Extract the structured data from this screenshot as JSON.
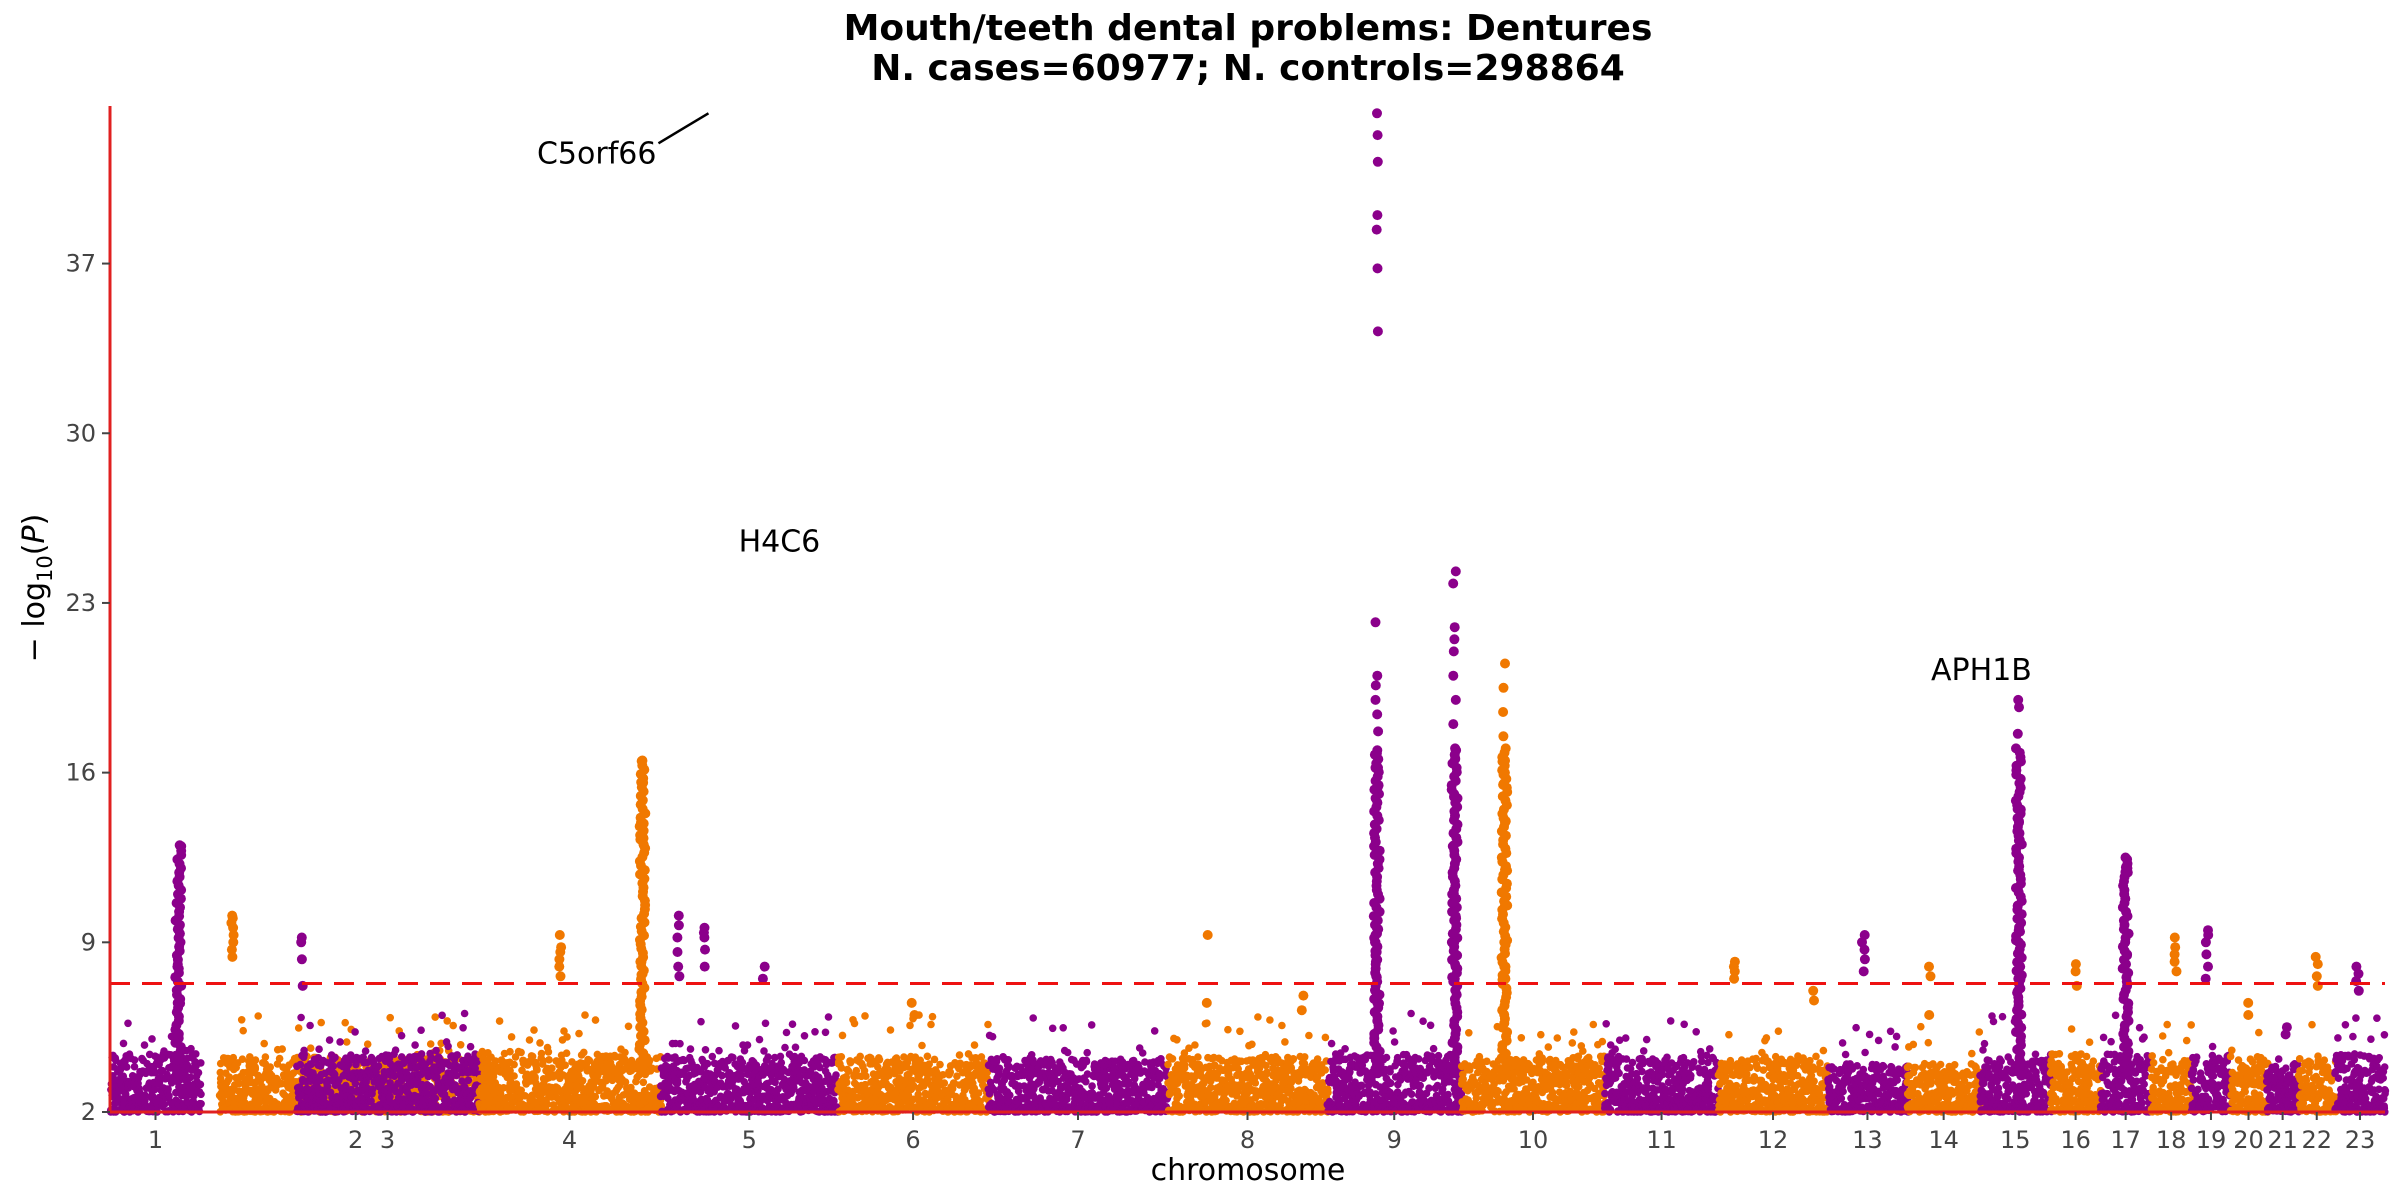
{
  "chart_data": {
    "type": "scatter",
    "subtype": "manhattan",
    "title": "Mouth/teeth dental problems: Dentures",
    "subtitle": "N. cases=60977; N. controls=298864",
    "xlabel": "chromosome",
    "ylabel": "−log10(P)",
    "ylim": [
      2,
      43.5
    ],
    "yticks": [
      2,
      9,
      16,
      23,
      30,
      37
    ],
    "significance_line": 7.3,
    "colors": {
      "odd": "#8b008b",
      "even": "#f07800",
      "axis": "#e02020",
      "threshold": "#ee1111",
      "text": "#000000",
      "tick": "#444444"
    },
    "grid": false,
    "legend": "none",
    "chromosomes": [
      {
        "label": "1",
        "start": 0.0,
        "end": 0.04,
        "base": 3.6,
        "peaks": [
          {
            "pos": 0.75,
            "values": [
              13.0,
              9.6,
              8.0,
              6.5
            ]
          }
        ]
      },
      {
        "label": "2",
        "start": 0.048,
        "end": 0.168,
        "base": 3.5,
        "peaks": [
          {
            "pos": 0.05,
            "values": [
              10.1,
              10.0,
              9.8,
              9.6,
              9.3,
              9.0,
              8.7,
              8.4
            ]
          }
        ]
      },
      {
        "label": "3",
        "start": 0.082,
        "end": 0.162,
        "base": 3.6,
        "peaks": [
          {
            "pos": 0.03,
            "values": [
              9.2,
              9.0,
              8.3,
              7.2
            ]
          }
        ]
      },
      {
        "label": "4",
        "start": 0.162,
        "end": 0.242,
        "base": 3.7,
        "peaks": [
          {
            "pos": 0.45,
            "values": [
              9.3,
              8.8,
              8.6,
              8.3,
              8.0,
              7.6
            ]
          },
          {
            "pos": 0.9,
            "values": [
              16.5,
              15.6,
              13.9,
              13.6,
              13.3,
              13.0,
              8.2,
              7.7
            ]
          }
        ]
      },
      {
        "label": "5",
        "start": 0.242,
        "end": 0.32,
        "base": 3.5,
        "peaks": [
          {
            "pos": 0.1,
            "values": [
              10.1,
              9.7,
              9.2,
              8.6,
              8.0,
              7.6
            ]
          },
          {
            "pos": 0.25,
            "values": [
              9.6,
              9.4,
              9.2,
              8.7,
              8.0
            ]
          },
          {
            "pos": 0.58,
            "values": [
              8.0,
              7.5
            ]
          }
        ]
      },
      {
        "label": "6",
        "start": 0.32,
        "end": 0.386,
        "base": 3.5,
        "peaks": [
          {
            "pos": 0.5,
            "values": [
              6.5,
              6.0
            ]
          }
        ]
      },
      {
        "label": "7",
        "start": 0.386,
        "end": 0.465,
        "base": 3.4,
        "peaks": []
      },
      {
        "label": "8",
        "start": 0.465,
        "end": 0.535,
        "base": 3.5,
        "peaks": [
          {
            "pos": 0.25,
            "values": [
              9.3,
              6.5
            ]
          },
          {
            "pos": 0.85,
            "values": [
              6.8,
              6.2
            ]
          }
        ]
      },
      {
        "label": "9",
        "start": 0.535,
        "end": 0.594,
        "base": 3.6,
        "peaks": [
          {
            "pos": 0.37,
            "values": [
              43.2,
              42.3,
              41.2,
              39.0,
              38.4,
              36.8,
              34.2,
              22.2,
              20.0,
              19.6,
              19.0,
              18.4,
              17.7,
              16.8,
              16.2,
              15.4,
              9.6,
              9.3,
              9.0,
              8.6,
              8.2,
              7.6,
              7.0,
              6.5
            ]
          },
          {
            "pos": 0.95,
            "values": [
              24.3,
              23.8,
              22.0,
              21.5,
              21.0,
              20.0,
              19.0,
              18.0,
              17.0,
              16.6,
              15.0,
              13.0,
              11.0,
              10.0,
              9.0,
              8.0,
              7.5
            ]
          }
        ]
      },
      {
        "label": "10",
        "start": 0.594,
        "end": 0.657,
        "base": 3.5,
        "peaks": [
          {
            "pos": 0.3,
            "values": [
              20.5,
              19.5,
              18.5,
              17.5,
              16.5,
              16.0,
              15.5,
              14.0,
              12.0,
              10.5,
              9.0,
              8.0,
              7.5
            ]
          }
        ]
      },
      {
        "label": "11",
        "start": 0.657,
        "end": 0.707,
        "base": 3.5,
        "peaks": []
      },
      {
        "label": "12",
        "start": 0.707,
        "end": 0.755,
        "base": 3.5,
        "peaks": [
          {
            "pos": 0.15,
            "values": [
              8.2,
              8.0,
              7.8,
              7.5
            ]
          },
          {
            "pos": 0.88,
            "values": [
              7.0,
              6.6
            ]
          }
        ]
      },
      {
        "label": "13",
        "start": 0.755,
        "end": 0.79,
        "base": 3.2,
        "peaks": [
          {
            "pos": 0.45,
            "values": [
              9.3,
              9.0,
              8.7,
              8.3,
              7.8
            ]
          }
        ]
      },
      {
        "label": "14",
        "start": 0.79,
        "end": 0.822,
        "base": 3.2,
        "peaks": [
          {
            "pos": 0.3,
            "values": [
              8.0,
              7.6,
              6.0
            ]
          }
        ]
      },
      {
        "label": "15",
        "start": 0.822,
        "end": 0.853,
        "base": 3.5,
        "peaks": [
          {
            "pos": 0.55,
            "values": [
              19.0,
              18.7,
              17.6,
              14.5,
              14.0,
              13.5,
              13.2,
              12.0,
              11.2,
              10.5,
              9.5,
              9.0,
              8.5,
              8.0,
              7.5,
              7.0
            ]
          }
        ]
      },
      {
        "label": "16",
        "start": 0.853,
        "end": 0.875,
        "base": 3.6,
        "peaks": [
          {
            "pos": 0.5,
            "values": [
              8.1,
              7.8,
              7.2
            ]
          }
        ]
      },
      {
        "label": "17",
        "start": 0.875,
        "end": 0.897,
        "base": 3.6,
        "peaks": [
          {
            "pos": 0.5,
            "values": [
              12.5,
              12.1,
              11.9,
              8.5
            ]
          }
        ]
      },
      {
        "label": "18",
        "start": 0.897,
        "end": 0.915,
        "base": 3.4,
        "peaks": [
          {
            "pos": 0.6,
            "values": [
              9.2,
              8.8,
              8.5,
              8.2,
              7.8
            ]
          }
        ]
      },
      {
        "label": "19",
        "start": 0.915,
        "end": 0.932,
        "base": 3.6,
        "peaks": [
          {
            "pos": 0.4,
            "values": [
              9.5,
              9.3,
              9.0,
              8.5,
              8.0,
              7.5
            ]
          }
        ]
      },
      {
        "label": "20",
        "start": 0.932,
        "end": 0.948,
        "base": 3.5,
        "peaks": [
          {
            "pos": 0.5,
            "values": [
              6.5,
              6.0
            ]
          }
        ]
      },
      {
        "label": "21",
        "start": 0.948,
        "end": 0.962,
        "base": 3.2,
        "peaks": [
          {
            "pos": 0.6,
            "values": [
              5.5,
              5.2
            ]
          }
        ]
      },
      {
        "label": "22",
        "start": 0.962,
        "end": 0.978,
        "base": 3.4,
        "peaks": [
          {
            "pos": 0.5,
            "values": [
              8.4,
              8.1,
              7.6,
              7.2
            ]
          }
        ]
      },
      {
        "label": "23",
        "start": 0.978,
        "end": 1.0,
        "base": 3.6,
        "peaks": [
          {
            "pos": 0.45,
            "values": [
              8.0,
              7.7,
              7.4,
              7.0
            ]
          }
        ]
      }
    ],
    "annotations": [
      {
        "text": "C5orf66",
        "x": 5.27,
        "y": 43.2,
        "leader": true
      },
      {
        "text": "H4C6",
        "x": 5.67,
        "y": 24.3,
        "leader": false
      },
      {
        "text": "APH1B",
        "x": 15.02,
        "y": 19.0,
        "leader": false
      }
    ]
  }
}
